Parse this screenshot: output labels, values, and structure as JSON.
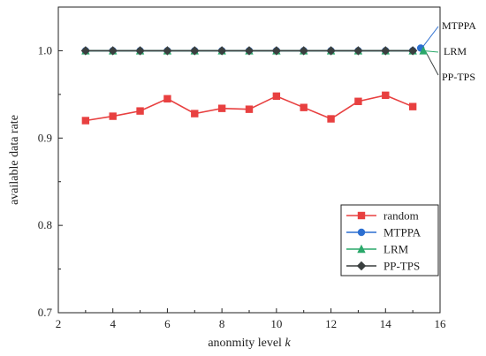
{
  "chart_data": {
    "type": "line",
    "xlabel": "anonmity level",
    "xlabel_var": "k",
    "ylabel": "available data rate",
    "xlim": [
      2,
      16
    ],
    "ylim": [
      0.7,
      1.05
    ],
    "x_ticks": [
      "2",
      "4",
      "6",
      "8",
      "10",
      "12",
      "14",
      "16"
    ],
    "y_ticks": [
      "0.7",
      "0.8",
      "0.9",
      "1.0"
    ],
    "x": [
      3,
      4,
      5,
      6,
      7,
      8,
      9,
      10,
      11,
      12,
      13,
      14,
      15
    ],
    "series": [
      {
        "name": "random",
        "color": "#e84040",
        "marker": "square",
        "values": [
          0.92,
          0.925,
          0.931,
          0.945,
          0.928,
          0.934,
          0.933,
          0.948,
          0.935,
          0.922,
          0.942,
          0.949,
          0.936
        ]
      },
      {
        "name": "MTPPA",
        "color": "#2c6fd1",
        "marker": "circle",
        "values": [
          1.0,
          1.0,
          1.0,
          1.0,
          1.0,
          1.0,
          1.0,
          1.0,
          1.0,
          1.0,
          1.0,
          1.0,
          1.0
        ]
      },
      {
        "name": "LRM",
        "color": "#2aa86a",
        "marker": "triangle",
        "values": [
          1.0,
          1.0,
          1.0,
          1.0,
          1.0,
          1.0,
          1.0,
          1.0,
          1.0,
          1.0,
          1.0,
          1.0,
          1.0
        ]
      },
      {
        "name": "PP-TPS",
        "color": "#3a3f3f",
        "marker": "diamond",
        "values": [
          1.0,
          1.0,
          1.0,
          1.0,
          1.0,
          1.0,
          1.0,
          1.0,
          1.0,
          1.0,
          1.0,
          1.0,
          1.0
        ]
      }
    ],
    "annotations": [
      "MTPPA",
      "LRM",
      "PP-TPS"
    ],
    "legend_position": "bottom-right",
    "grid": false
  }
}
